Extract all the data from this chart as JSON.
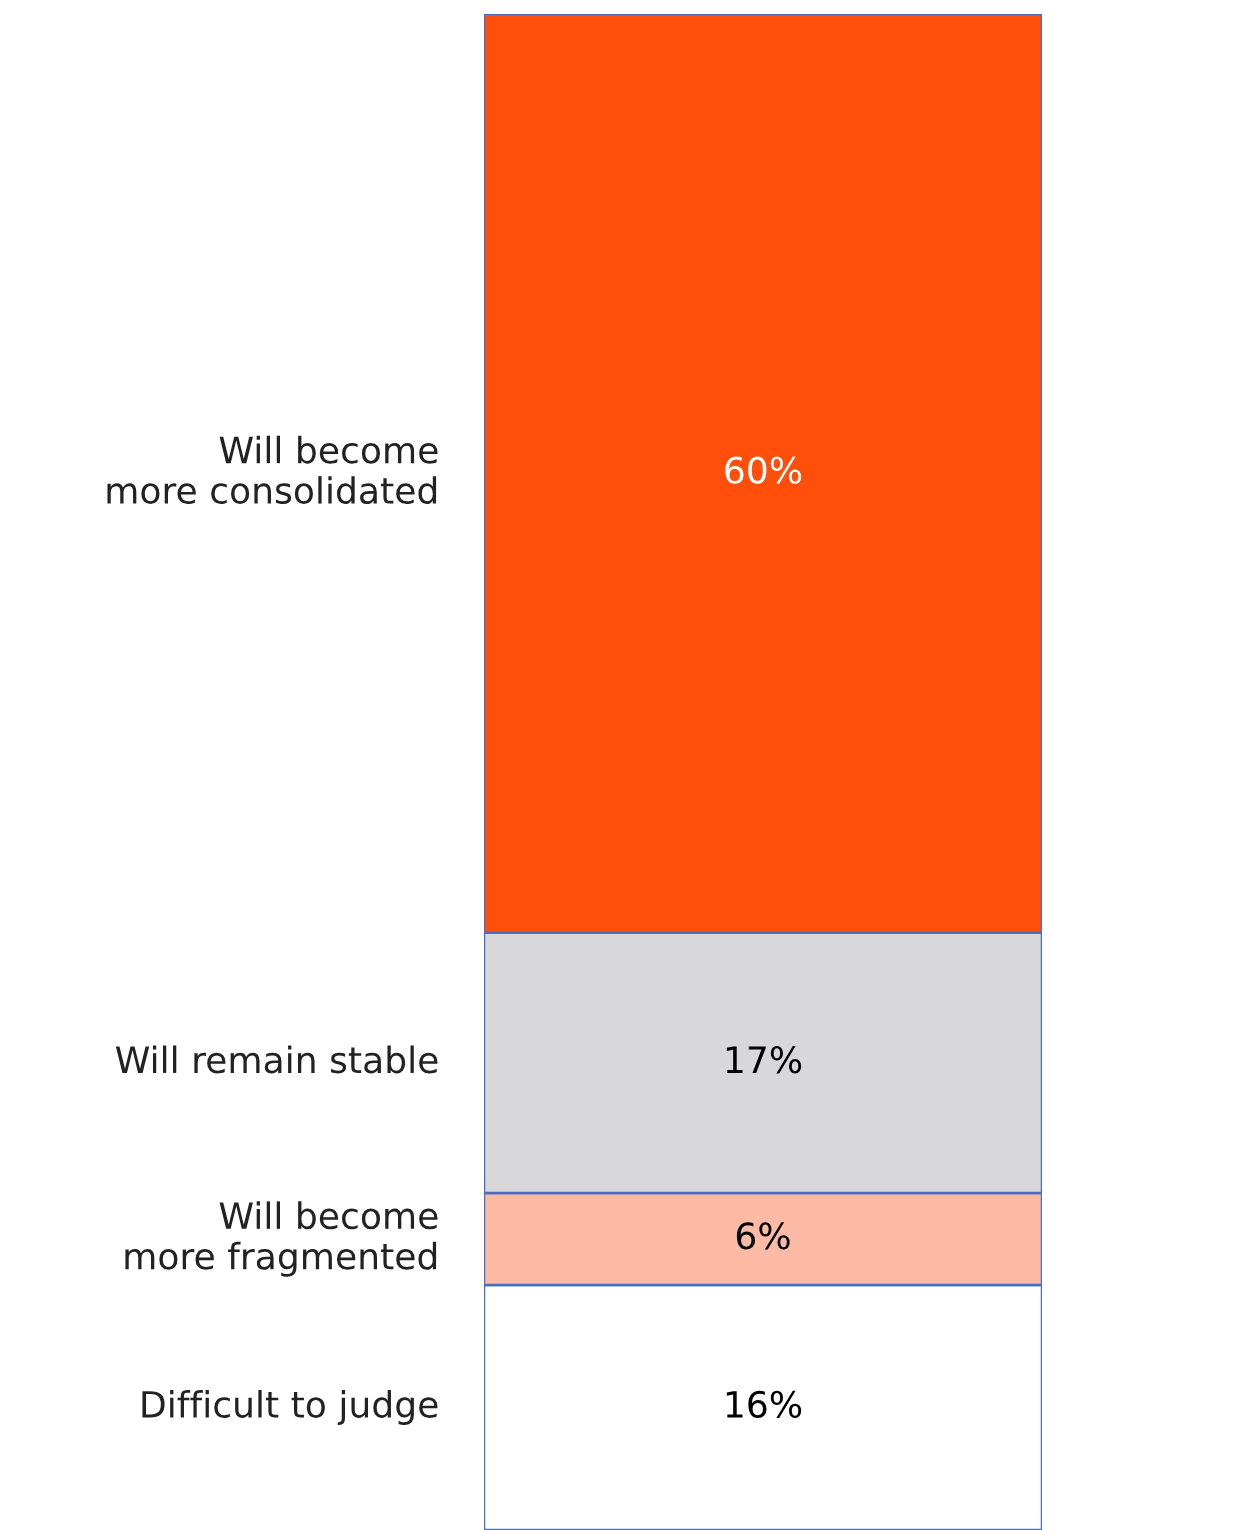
{
  "chart_data": {
    "type": "bar",
    "stacked": true,
    "categories": [
      null
    ],
    "series": [
      {
        "name": "Difficult to judge",
        "color": "#ffffff",
        "values": [
          16
        ],
        "value_labels": [
          "16%"
        ]
      },
      {
        "name": "Will become\nmore fragmented",
        "color": "#fdbba5",
        "values": [
          6
        ],
        "value_labels": [
          "6%"
        ]
      },
      {
        "name": "Will remain stable",
        "color": "#d8d8da",
        "values": [
          17
        ],
        "value_labels": [
          "17%"
        ]
      },
      {
        "name": "Will become\nmore consolidated",
        "color": "#ff4f0a",
        "values": [
          60
        ],
        "value_labels": [
          "60%"
        ]
      }
    ]
  }
}
